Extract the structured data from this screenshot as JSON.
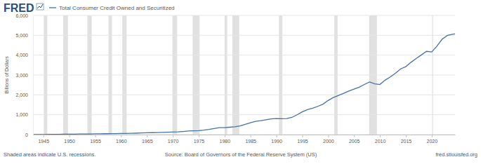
{
  "chart_data": {
    "type": "line",
    "logo": "FRED",
    "ylabel": "Billions of Dollars",
    "note": "Shaded areas indicate U.S. recessions.",
    "source": "Source: Board of Governors of the Federal Reserve System (US)",
    "url": "fred.stlouisfed.org",
    "legend": "top-left",
    "grid": true,
    "xlim": [
      1943,
      2024.5
    ],
    "xticks": [
      1945,
      1950,
      1955,
      1960,
      1965,
      1970,
      1975,
      1980,
      1985,
      1990,
      1995,
      2000,
      2005,
      2010,
      2015,
      2020
    ],
    "ylim": [
      0,
      6000
    ],
    "yticks": [
      0,
      {
        "value": 1000,
        "label": "1,000"
      },
      {
        "value": 2000,
        "label": "2,000"
      },
      {
        "value": 3000,
        "label": "3,000"
      },
      {
        "value": 4000,
        "label": "4,000"
      },
      {
        "value": 5000,
        "label": "5,000"
      },
      {
        "value": 6000,
        "label": "6,000"
      }
    ],
    "recessions": [
      [
        1945.08,
        1945.75
      ],
      [
        1948.83,
        1949.75
      ],
      [
        1953.5,
        1954.33
      ],
      [
        1957.58,
        1958.25
      ],
      [
        1960.25,
        1961.08
      ],
      [
        1969.92,
        1970.83
      ],
      [
        1973.83,
        1975.17
      ],
      [
        1980.0,
        1980.5
      ],
      [
        1981.5,
        1982.83
      ],
      [
        1990.5,
        1991.17
      ],
      [
        2001.17,
        2001.83
      ],
      [
        2007.92,
        2009.42
      ],
      [
        2020.08,
        2020.25
      ]
    ],
    "x": [
      1943,
      1944,
      1945,
      1946,
      1947,
      1948,
      1949,
      1950,
      1951,
      1952,
      1953,
      1954,
      1955,
      1956,
      1957,
      1958,
      1959,
      1960,
      1961,
      1962,
      1963,
      1964,
      1965,
      1966,
      1967,
      1968,
      1969,
      1970,
      1971,
      1972,
      1973,
      1974,
      1975,
      1976,
      1977,
      1978,
      1979,
      1980,
      1981,
      1982,
      1983,
      1984,
      1985,
      1986,
      1987,
      1988,
      1989,
      1990,
      1991,
      1992,
      1993,
      1994,
      1995,
      1996,
      1997,
      1998,
      1999,
      2000,
      2001,
      2002,
      2003,
      2004,
      2005,
      2006,
      2007,
      2008,
      2009,
      2010,
      2011,
      2012,
      2013,
      2014,
      2015,
      2016,
      2017,
      2018,
      2019,
      2020,
      2021,
      2022,
      2023,
      2024,
      2024.5
    ],
    "series": [
      {
        "name": "Total Consumer Credit Owned and Securitized",
        "color": "#4572a7",
        "values": [
          5.0,
          5.1,
          5.7,
          8.4,
          11.6,
          14.4,
          17.4,
          21.5,
          22.7,
          27.5,
          31.4,
          32.5,
          38.8,
          42.3,
          44.8,
          45.1,
          51.5,
          56.0,
          57.7,
          63.2,
          71.0,
          80.3,
          90.3,
          96.2,
          100.8,
          110.8,
          121.1,
          127.2,
          138.4,
          157.5,
          180.0,
          190.1,
          196.4,
          221.5,
          260.6,
          306.1,
          348.6,
          351.9,
          371.3,
          389.8,
          437.1,
          517.3,
          599.7,
          666.4,
          698.6,
          745.2,
          789.1,
          808.2,
          798.0,
          806.1,
          865.7,
          997.3,
          1140.7,
          1253.4,
          1324.8,
          1421.0,
          1531.1,
          1717.5,
          1867.9,
          1972.1,
          2077.4,
          2192.2,
          2290.9,
          2384.8,
          2522.2,
          2650.0,
          2553.0,
          2520.0,
          2740.0,
          2900.0,
          3090.0,
          3310.0,
          3420.0,
          3640.0,
          3830.0,
          4010.0,
          4190.0,
          4160.0,
          4450.0,
          4800.0,
          4990.0,
          5050.0,
          5070.0
        ]
      }
    ]
  }
}
